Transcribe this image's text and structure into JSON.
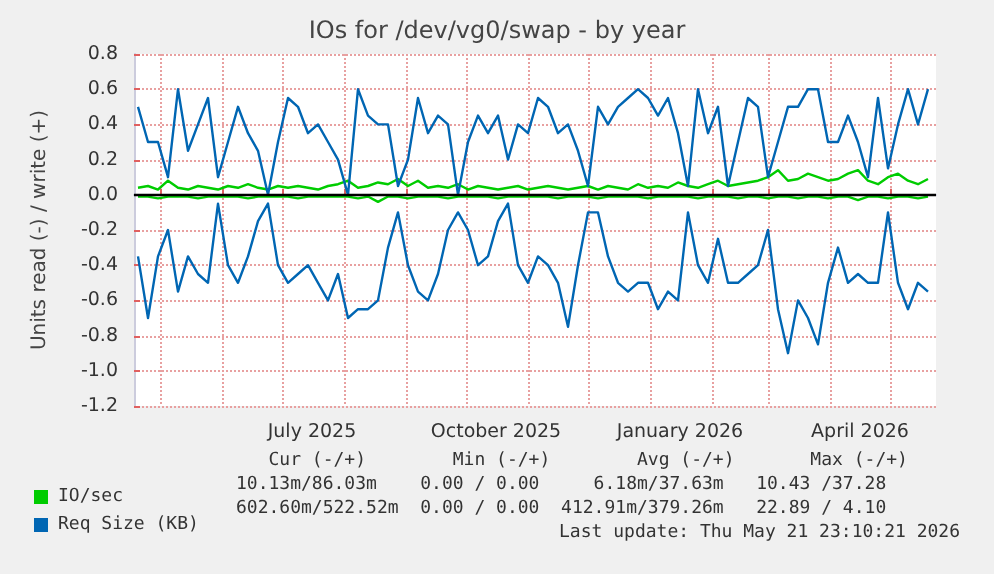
{
  "chart_data": {
    "type": "line",
    "title": "IOs for /dev/vg0/swap - by year",
    "ylabel": "Units read (-) / write (+)",
    "x": [
      "2025-04-20",
      "2025-04-25",
      "2025-04-30",
      "2025-05-05",
      "2025-05-10",
      "2025-05-15",
      "2025-05-20",
      "2025-05-25",
      "2025-05-30",
      "2025-06-04",
      "2025-06-09",
      "2025-06-14",
      "2025-06-19",
      "2025-06-24",
      "2025-06-29",
      "2025-07-04",
      "2025-07-09",
      "2025-07-14",
      "2025-07-19",
      "2025-07-24",
      "2025-07-29",
      "2025-08-03",
      "2025-08-08",
      "2025-08-13",
      "2025-08-18",
      "2025-08-23",
      "2025-08-28",
      "2025-09-02",
      "2025-09-07",
      "2025-09-12",
      "2025-09-17",
      "2025-09-22",
      "2025-09-27",
      "2025-10-02",
      "2025-10-07",
      "2025-10-12",
      "2025-10-17",
      "2025-10-22",
      "2025-10-27",
      "2025-11-01",
      "2025-11-06",
      "2025-11-11",
      "2025-11-16",
      "2025-11-21",
      "2025-11-26",
      "2025-12-01",
      "2025-12-06",
      "2025-12-11",
      "2025-12-16",
      "2025-12-21",
      "2025-12-26",
      "2025-12-31",
      "2026-01-05",
      "2026-01-10",
      "2026-01-15",
      "2026-01-20",
      "2026-01-25",
      "2026-01-30",
      "2026-02-04",
      "2026-02-09",
      "2026-02-14",
      "2026-02-19",
      "2026-02-24",
      "2026-03-01",
      "2026-03-06",
      "2026-03-11",
      "2026-03-16",
      "2026-03-21",
      "2026-03-26",
      "2026-03-31",
      "2026-04-05",
      "2026-04-10",
      "2026-04-15",
      "2026-04-20",
      "2026-04-25",
      "2026-04-30",
      "2026-05-05",
      "2026-05-10",
      "2026-05-15",
      "2026-05-20"
    ],
    "series": [
      {
        "name": "IO/sec",
        "color": "#00cc00",
        "values": [
          0.04,
          0.05,
          0.03,
          0.08,
          0.04,
          0.03,
          0.05,
          0.04,
          0.03,
          0.05,
          0.04,
          0.06,
          0.04,
          0.03,
          0.05,
          0.04,
          0.05,
          0.04,
          0.03,
          0.05,
          0.06,
          0.08,
          0.04,
          0.05,
          0.07,
          0.06,
          0.09,
          0.05,
          0.08,
          0.04,
          0.05,
          0.04,
          0.06,
          0.03,
          0.05,
          0.04,
          0.03,
          0.04,
          0.05,
          0.03,
          0.04,
          0.05,
          0.04,
          0.03,
          0.04,
          0.05,
          0.03,
          0.05,
          0.04,
          0.03,
          0.06,
          0.04,
          0.05,
          0.04,
          0.07,
          0.05,
          0.04,
          0.06,
          0.08,
          0.05,
          0.06,
          0.07,
          0.08,
          0.1,
          0.14,
          0.08,
          0.09,
          0.12,
          0.1,
          0.08,
          0.09,
          0.12,
          0.14,
          0.08,
          0.06,
          0.1,
          0.12,
          0.08,
          0.06,
          0.09
        ]
      },
      {
        "color": "#00cc00",
        "values": [
          -0.01,
          -0.01,
          -0.02,
          -0.01,
          -0.01,
          -0.01,
          -0.02,
          -0.01,
          -0.01,
          -0.01,
          -0.01,
          -0.02,
          -0.01,
          -0.01,
          -0.01,
          -0.01,
          -0.02,
          -0.01,
          -0.01,
          -0.01,
          -0.01,
          -0.01,
          -0.02,
          -0.01,
          -0.04,
          -0.01,
          -0.01,
          -0.02,
          -0.01,
          -0.01,
          -0.01,
          -0.02,
          -0.01,
          -0.01,
          -0.01,
          -0.01,
          -0.02,
          -0.01,
          -0.01,
          -0.01,
          -0.01,
          -0.01,
          -0.02,
          -0.01,
          -0.01,
          -0.01,
          -0.02,
          -0.01,
          -0.01,
          -0.01,
          -0.01,
          -0.02,
          -0.01,
          -0.01,
          -0.01,
          -0.01,
          -0.02,
          -0.01,
          -0.01,
          -0.01,
          -0.02,
          -0.01,
          -0.01,
          -0.02,
          -0.01,
          -0.01,
          -0.02,
          -0.01,
          -0.01,
          -0.02,
          -0.01,
          -0.01,
          -0.03,
          -0.01,
          -0.01,
          -0.02,
          -0.01,
          -0.01,
          -0.02,
          -0.01
        ]
      },
      {
        "name": "Req Size (KB)",
        "color": "#0066b3",
        "values": [
          0.5,
          0.3,
          0.3,
          0.1,
          0.6,
          0.25,
          0.4,
          0.55,
          0.1,
          0.3,
          0.5,
          0.35,
          0.25,
          0.0,
          0.3,
          0.55,
          0.5,
          0.35,
          0.4,
          0.3,
          0.2,
          0.0,
          0.6,
          0.45,
          0.4,
          0.4,
          0.05,
          0.2,
          0.55,
          0.35,
          0.45,
          0.4,
          0.0,
          0.3,
          0.45,
          0.35,
          0.45,
          0.2,
          0.4,
          0.35,
          0.55,
          0.5,
          0.35,
          0.4,
          0.25,
          0.05,
          0.5,
          0.4,
          0.5,
          0.55,
          0.6,
          0.55,
          0.45,
          0.55,
          0.35,
          0.05,
          0.6,
          0.35,
          0.5,
          0.05,
          0.3,
          0.55,
          0.5,
          0.1,
          0.3,
          0.5,
          0.5,
          0.6,
          0.6,
          0.3,
          0.3,
          0.45,
          0.3,
          0.1,
          0.55,
          0.15,
          0.4,
          0.6,
          0.4,
          0.6
        ]
      },
      {
        "color": "#0066b3",
        "values": [
          -0.35,
          -0.7,
          -0.35,
          -0.2,
          -0.55,
          -0.35,
          -0.45,
          -0.5,
          -0.05,
          -0.4,
          -0.5,
          -0.35,
          -0.15,
          -0.05,
          -0.4,
          -0.5,
          -0.45,
          -0.4,
          -0.5,
          -0.6,
          -0.45,
          -0.7,
          -0.65,
          -0.65,
          -0.6,
          -0.3,
          -0.1,
          -0.4,
          -0.55,
          -0.6,
          -0.45,
          -0.2,
          -0.1,
          -0.2,
          -0.4,
          -0.35,
          -0.15,
          -0.05,
          -0.4,
          -0.5,
          -0.35,
          -0.4,
          -0.5,
          -0.75,
          -0.4,
          -0.1,
          -0.1,
          -0.35,
          -0.5,
          -0.55,
          -0.5,
          -0.5,
          -0.65,
          -0.55,
          -0.6,
          -0.1,
          -0.4,
          -0.5,
          -0.25,
          -0.5,
          -0.5,
          -0.45,
          -0.4,
          -0.2,
          -0.65,
          -0.9,
          -0.6,
          -0.7,
          -0.85,
          -0.5,
          -0.3,
          -0.5,
          -0.45,
          -0.5,
          -0.5,
          -0.1,
          -0.5,
          -0.65,
          -0.5,
          -0.55
        ]
      }
    ],
    "xlim": [
      "2025-04-18",
      "2026-05-24"
    ],
    "xticks": [
      {
        "value": "2025-05-01",
        "label": null
      },
      {
        "value": "2025-06-01",
        "label": null
      },
      {
        "value": "2025-07-01",
        "label": null
      },
      {
        "value": "2025-07-16",
        "label": "July 2025"
      },
      {
        "value": "2025-08-01",
        "label": null
      },
      {
        "value": "2025-09-01",
        "label": null
      },
      {
        "value": "2025-10-01",
        "label": null
      },
      {
        "value": "2025-10-16",
        "label": "October 2025"
      },
      {
        "value": "2025-11-01",
        "label": null
      },
      {
        "value": "2025-12-01",
        "label": null
      },
      {
        "value": "2026-01-01",
        "label": null
      },
      {
        "value": "2026-01-16",
        "label": "January 2026"
      },
      {
        "value": "2026-02-01",
        "label": null
      },
      {
        "value": "2026-03-01",
        "label": null
      },
      {
        "value": "2026-04-01",
        "label": null
      },
      {
        "value": "2026-04-16",
        "label": "April 2026"
      },
      {
        "value": "2026-05-01",
        "label": null
      }
    ],
    "ylim": [
      -1.2,
      0.8
    ],
    "yticks": [
      {
        "value": -1.2,
        "label": "-1.2"
      },
      {
        "value": -1.0,
        "label": "-1.0"
      },
      {
        "value": -0.8,
        "label": "-0.8"
      },
      {
        "value": -0.6,
        "label": "-0.6"
      },
      {
        "value": -0.4,
        "label": "-0.4"
      },
      {
        "value": -0.2,
        "label": "-0.2"
      },
      {
        "value": 0,
        "label": "0.0"
      },
      {
        "value": 0.2,
        "label": "0.2"
      },
      {
        "value": 0.4,
        "label": "0.4"
      },
      {
        "value": 0.6,
        "label": "0.6"
      },
      {
        "value": 0.8,
        "label": "0.8"
      }
    ],
    "ref_lines": [
      {
        "axis": "y",
        "value": 0,
        "color": "#000000"
      }
    ],
    "grid": true,
    "legend": "bottom left",
    "marker": "none",
    "annotations": [
      "   Cur (-/+)        Min (-/+)        Avg (-/+)       Max (-/+)",
      "10.13m/86.03m    0.00 / 0.00     6.18m/37.63m   10.43 /37.28",
      "602.60m/522.52m  0.00 / 0.00  412.91m/379.26m   22.89 / 4.10",
      "Last update: Thu May 21 23:10:21 2026"
    ]
  }
}
